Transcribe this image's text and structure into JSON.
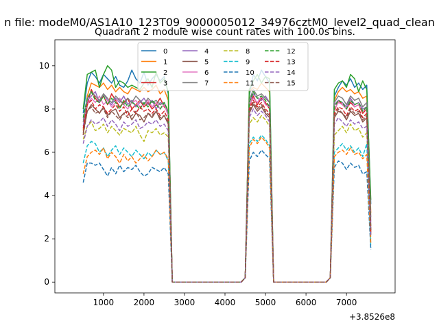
{
  "figure": {
    "suptitle": "n file: modeM0/AS1A10_123T09_9000005012_34976cztM0_level2_quad_clean"
  },
  "chart_data": {
    "type": "line",
    "title": "Quadrant 2 module wise count rates with 100.0s bins.",
    "xlabel": "",
    "ylabel": "",
    "x_offset_label": "+3.8526e8",
    "xlim": [
      -200,
      8200
    ],
    "ylim": [
      -0.5,
      11.2
    ],
    "xticks": [
      1000,
      2000,
      3000,
      4000,
      5000,
      6000,
      7000
    ],
    "yticks": [
      0,
      2,
      4,
      6,
      8,
      10
    ],
    "grid": false,
    "legend": {
      "placement": "upper-center",
      "columns": 4
    },
    "x": [
      500,
      600,
      700,
      800,
      900,
      1000,
      1100,
      1200,
      1300,
      1400,
      1500,
      1600,
      1700,
      1800,
      1900,
      2000,
      2100,
      2200,
      2300,
      2400,
      2500,
      2600,
      2700,
      2800,
      2900,
      3000,
      3100,
      3200,
      3300,
      3400,
      3500,
      3600,
      3700,
      3800,
      3900,
      4000,
      4100,
      4200,
      4300,
      4400,
      4500,
      4600,
      4700,
      4800,
      4900,
      5000,
      5100,
      5200,
      5300,
      5400,
      5500,
      5600,
      5700,
      5800,
      5900,
      6000,
      6100,
      6200,
      6300,
      6400,
      6500,
      6600,
      6700,
      6800,
      6900,
      7000,
      7100,
      7200,
      7300,
      7400,
      7500,
      7600
    ],
    "series": [
      {
        "name": "0",
        "color": "#1f77b4",
        "dash": "solid",
        "values": [
          7.8,
          9.2,
          9.7,
          9.5,
          9.2,
          9.6,
          9.4,
          9.2,
          9.5,
          9.1,
          9.0,
          9.3,
          9.8,
          9.4,
          9.2,
          9.7,
          9.1,
          9.4,
          9.6,
          9.3,
          9.5,
          8.7,
          0.0,
          0,
          0,
          0,
          0,
          0,
          0,
          0,
          0,
          0,
          0,
          0,
          0,
          0,
          0,
          0,
          0,
          0,
          0.2,
          8.6,
          9.6,
          9.3,
          9.8,
          9.5,
          9.2,
          0.0,
          0,
          0,
          0,
          0,
          0,
          0,
          0,
          0,
          0,
          0,
          0,
          0,
          0,
          0.2,
          8.6,
          9.0,
          9.3,
          9.1,
          9.4,
          9.0,
          9.2,
          8.9,
          9.1,
          3.6
        ]
      },
      {
        "name": "1",
        "color": "#ff7f0e",
        "dash": "solid",
        "values": [
          7.0,
          8.6,
          9.2,
          9.1,
          9.0,
          9.2,
          8.9,
          9.1,
          8.8,
          9.0,
          8.8,
          8.7,
          9.0,
          8.9,
          8.8,
          9.0,
          8.8,
          8.9,
          9.1,
          8.7,
          8.9,
          8.4,
          0.0,
          0,
          0,
          0,
          0,
          0,
          0,
          0,
          0,
          0,
          0,
          0,
          0,
          0,
          0,
          0,
          0,
          0,
          0.2,
          8.8,
          9.0,
          8.9,
          9.2,
          9.0,
          8.8,
          0.0,
          0,
          0,
          0,
          0,
          0,
          0,
          0,
          0,
          0,
          0,
          0,
          0,
          0,
          0.2,
          8.4,
          8.8,
          9.0,
          8.8,
          8.9,
          8.7,
          8.8,
          8.5,
          8.6,
          3.2
        ]
      },
      {
        "name": "2",
        "color": "#2ca02c",
        "dash": "solid",
        "values": [
          8.0,
          9.6,
          9.7,
          9.8,
          9.0,
          9.6,
          10.0,
          9.8,
          9.0,
          9.3,
          9.2,
          9.0,
          9.1,
          9.0,
          8.9,
          9.2,
          9.4,
          9.0,
          9.7,
          9.2,
          9.4,
          8.8,
          0.0,
          0,
          0,
          0,
          0,
          0,
          0,
          0,
          0,
          0,
          0,
          0,
          0,
          0,
          0,
          0,
          0,
          0,
          0.2,
          8.9,
          9.3,
          9.6,
          9.2,
          9.5,
          9.4,
          0.0,
          0,
          0,
          0,
          0,
          0,
          0,
          0,
          0,
          0,
          0,
          0,
          0,
          0,
          0.2,
          8.9,
          9.2,
          9.3,
          9.0,
          9.6,
          9.4,
          8.8,
          9.3,
          8.9,
          3.8
        ]
      },
      {
        "name": "3",
        "color": "#d62728",
        "dash": "solid",
        "values": [
          6.8,
          8.2,
          8.9,
          8.5,
          8.3,
          8.6,
          8.2,
          8.7,
          8.4,
          8.1,
          8.3,
          8.5,
          8.0,
          8.2,
          8.4,
          8.1,
          8.3,
          8.0,
          8.2,
          8.5,
          8.1,
          7.9,
          0.0,
          0,
          0,
          0,
          0,
          0,
          0,
          0,
          0,
          0,
          0,
          0,
          0,
          0,
          0,
          0,
          0,
          0,
          0.2,
          8.1,
          8.6,
          8.2,
          8.5,
          8.3,
          8.0,
          0.0,
          0,
          0,
          0,
          0,
          0,
          0,
          0,
          0,
          0,
          0,
          0,
          0,
          0,
          0.2,
          7.9,
          8.4,
          8.2,
          8.0,
          8.3,
          8.1,
          8.2,
          7.8,
          8.0,
          2.4
        ]
      },
      {
        "name": "4",
        "color": "#9467bd",
        "dash": "solid",
        "values": [
          7.2,
          8.4,
          8.6,
          8.8,
          8.3,
          8.7,
          8.4,
          8.2,
          8.5,
          8.3,
          8.6,
          8.2,
          8.4,
          8.1,
          8.3,
          8.5,
          8.2,
          8.4,
          8.0,
          8.3,
          8.2,
          7.8,
          0.0,
          0,
          0,
          0,
          0,
          0,
          0,
          0,
          0,
          0,
          0,
          0,
          0,
          0,
          0,
          0,
          0,
          0,
          0.2,
          8.3,
          8.7,
          8.5,
          8.4,
          8.6,
          8.3,
          0.0,
          0,
          0,
          0,
          0,
          0,
          0,
          0,
          0,
          0,
          0,
          0,
          0,
          0,
          0.2,
          8.2,
          8.4,
          8.3,
          8.1,
          8.5,
          8.2,
          8.3,
          8.0,
          8.1,
          2.8
        ]
      },
      {
        "name": "5",
        "color": "#8c564b",
        "dash": "solid",
        "values": [
          6.9,
          7.9,
          8.2,
          8.0,
          7.8,
          8.1,
          7.7,
          7.9,
          8.0,
          7.6,
          7.8,
          7.9,
          7.5,
          7.8,
          7.7,
          7.4,
          7.8,
          7.6,
          7.9,
          7.5,
          7.7,
          7.3,
          0.0,
          0,
          0,
          0,
          0,
          0,
          0,
          0,
          0,
          0,
          0,
          0,
          0,
          0,
          0,
          0,
          0,
          0,
          0.2,
          7.8,
          8.2,
          7.9,
          8.1,
          7.8,
          7.6,
          0.0,
          0,
          0,
          0,
          0,
          0,
          0,
          0,
          0,
          0,
          0,
          0,
          0,
          0,
          0.2,
          7.6,
          7.9,
          7.8,
          7.5,
          7.9,
          7.7,
          7.8,
          7.4,
          7.6,
          2.2
        ]
      },
      {
        "name": "6",
        "color": "#e377c2",
        "dash": "solid",
        "values": [
          7.5,
          8.2,
          8.5,
          8.3,
          8.6,
          8.2,
          8.4,
          8.1,
          8.3,
          8.5,
          8.2,
          8.0,
          8.3,
          8.4,
          8.1,
          8.2,
          8.4,
          8.1,
          8.3,
          8.0,
          8.2,
          7.7,
          0.0,
          0,
          0,
          0,
          0,
          0,
          0,
          0,
          0,
          0,
          0,
          0,
          0,
          0,
          0,
          0,
          0,
          0,
          0.2,
          8.2,
          8.5,
          8.3,
          8.6,
          8.2,
          8.1,
          0.0,
          0,
          0,
          0,
          0,
          0,
          0,
          0,
          0,
          0,
          0,
          0,
          0,
          0,
          0.2,
          8.0,
          8.3,
          8.2,
          8.0,
          8.4,
          8.1,
          8.2,
          7.9,
          8.0,
          2.6
        ]
      },
      {
        "name": "7",
        "color": "#7f7f7f",
        "dash": "solid",
        "values": [
          7.4,
          8.5,
          8.8,
          8.6,
          8.4,
          8.7,
          8.5,
          8.3,
          8.6,
          8.4,
          8.2,
          8.5,
          8.3,
          8.6,
          8.4,
          8.2,
          8.5,
          8.3,
          8.4,
          8.2,
          8.3,
          7.9,
          0.0,
          0,
          0,
          0,
          0,
          0,
          0,
          0,
          0,
          0,
          0,
          0,
          0,
          0,
          0,
          0,
          0,
          0,
          0.2,
          8.4,
          8.9,
          8.6,
          8.7,
          8.5,
          8.3,
          0.0,
          0,
          0,
          0,
          0,
          0,
          0,
          0,
          0,
          0,
          0,
          0,
          0,
          0,
          0.2,
          8.3,
          8.6,
          8.5,
          8.2,
          8.6,
          8.4,
          8.5,
          8.1,
          8.3,
          3.0
        ]
      },
      {
        "name": "8",
        "color": "#bcbd22",
        "dash": "dashed",
        "values": [
          6.6,
          7.2,
          7.4,
          7.0,
          7.1,
          7.3,
          6.9,
          7.2,
          7.0,
          6.8,
          7.1,
          7.0,
          6.9,
          7.2,
          6.8,
          6.5,
          7.0,
          6.9,
          7.1,
          6.8,
          6.9,
          6.7,
          0.0,
          0,
          0,
          0,
          0,
          0,
          0,
          0,
          0,
          0,
          0,
          0,
          0,
          0,
          0,
          0,
          0,
          0,
          0.2,
          7.3,
          7.6,
          7.4,
          7.7,
          7.5,
          7.2,
          0.0,
          0,
          0,
          0,
          0,
          0,
          0,
          0,
          0,
          0,
          0,
          0,
          0,
          0,
          0.2,
          6.8,
          7.0,
          7.2,
          6.9,
          7.3,
          7.0,
          7.1,
          6.7,
          6.9,
          2.0
        ]
      },
      {
        "name": "9",
        "color": "#17becf",
        "dash": "dashed",
        "values": [
          5.5,
          6.3,
          6.5,
          6.4,
          6.0,
          6.2,
          5.8,
          6.1,
          6.3,
          5.9,
          6.2,
          6.0,
          5.8,
          6.1,
          5.9,
          5.7,
          6.0,
          5.8,
          6.1,
          5.9,
          6.0,
          5.6,
          0.0,
          0,
          0,
          0,
          0,
          0,
          0,
          0,
          0,
          0,
          0,
          0,
          0,
          0,
          0,
          0,
          0,
          0,
          0.2,
          6.4,
          6.7,
          6.5,
          6.8,
          6.6,
          6.3,
          0.0,
          0,
          0,
          0,
          0,
          0,
          0,
          0,
          0,
          0,
          0,
          0,
          0,
          0,
          0.2,
          6.0,
          6.2,
          6.4,
          6.1,
          6.3,
          6.0,
          6.2,
          5.8,
          6.4,
          1.6
        ]
      },
      {
        "name": "10",
        "color": "#1f77b4",
        "dash": "dashed",
        "values": [
          4.6,
          5.5,
          5.5,
          5.4,
          5.5,
          5.2,
          4.9,
          5.3,
          5.0,
          5.4,
          5.1,
          5.3,
          5.2,
          5.4,
          5.1,
          4.9,
          5.0,
          5.3,
          5.2,
          5.1,
          5.3,
          5.0,
          0.0,
          0,
          0,
          0,
          0,
          0,
          0,
          0,
          0,
          0,
          0,
          0,
          0,
          0,
          0,
          0,
          0,
          0,
          0.2,
          5.6,
          6.0,
          5.8,
          6.1,
          5.9,
          5.7,
          0.0,
          0,
          0,
          0,
          0,
          0,
          0,
          0,
          0,
          0,
          0,
          0,
          0,
          0,
          0.2,
          5.3,
          5.6,
          5.5,
          5.2,
          5.5,
          5.3,
          5.4,
          5.0,
          5.1,
          1.5
        ]
      },
      {
        "name": "11",
        "color": "#ff7f0e",
        "dash": "dashed",
        "values": [
          5.0,
          5.8,
          6.0,
          6.1,
          5.9,
          6.2,
          5.7,
          6.0,
          5.8,
          5.5,
          5.9,
          5.6,
          5.8,
          5.5,
          5.7,
          5.9,
          5.6,
          5.8,
          6.1,
          5.9,
          6.0,
          5.7,
          0.0,
          0,
          0,
          0,
          0,
          0,
          0,
          0,
          0,
          0,
          0,
          0,
          0,
          0,
          0,
          0,
          0,
          0,
          0.2,
          6.2,
          6.6,
          6.4,
          6.7,
          6.5,
          6.2,
          0.0,
          0,
          0,
          0,
          0,
          0,
          0,
          0,
          0,
          0,
          0,
          0,
          0,
          0,
          0.2,
          5.8,
          6.0,
          6.1,
          5.9,
          6.2,
          5.9,
          6.0,
          5.7,
          5.9,
          1.8
        ]
      },
      {
        "name": "12",
        "color": "#2ca02c",
        "dash": "dashed",
        "values": [
          7.6,
          8.5,
          8.8,
          8.4,
          8.3,
          8.6,
          8.2,
          8.5,
          8.3,
          8.0,
          8.4,
          8.1,
          8.3,
          8.2,
          8.0,
          8.3,
          8.1,
          8.4,
          8.2,
          8.0,
          8.3,
          7.9,
          0.0,
          0,
          0,
          0,
          0,
          0,
          0,
          0,
          0,
          0,
          0,
          0,
          0,
          0,
          0,
          0,
          0,
          0,
          0.2,
          8.3,
          8.8,
          8.5,
          8.6,
          8.4,
          8.1,
          0.0,
          0,
          0,
          0,
          0,
          0,
          0,
          0,
          0,
          0,
          0,
          0,
          0,
          0,
          0.2,
          8.1,
          8.4,
          8.3,
          8.0,
          8.4,
          8.2,
          8.3,
          7.9,
          8.1,
          2.5
        ]
      },
      {
        "name": "13",
        "color": "#d62728",
        "dash": "dashed",
        "values": [
          7.1,
          8.2,
          8.4,
          8.0,
          8.2,
          8.1,
          7.8,
          8.0,
          8.2,
          7.9,
          8.1,
          7.7,
          8.0,
          7.8,
          8.1,
          7.9,
          8.0,
          7.8,
          8.0,
          7.7,
          7.9,
          7.5,
          0.0,
          0,
          0,
          0,
          0,
          0,
          0,
          0,
          0,
          0,
          0,
          0,
          0,
          0,
          0,
          0,
          0,
          0,
          0.2,
          8.0,
          8.4,
          8.1,
          8.3,
          8.0,
          7.8,
          0.0,
          0,
          0,
          0,
          0,
          0,
          0,
          0,
          0,
          0,
          0,
          0,
          0,
          0,
          0.2,
          7.8,
          8.1,
          8.0,
          7.7,
          8.1,
          7.9,
          8.0,
          7.6,
          7.8,
          2.3
        ]
      },
      {
        "name": "14",
        "color": "#9467bd",
        "dash": "dashed",
        "values": [
          6.4,
          7.2,
          7.5,
          7.3,
          7.4,
          7.6,
          7.2,
          7.5,
          7.3,
          7.0,
          7.4,
          7.2,
          7.3,
          7.5,
          7.1,
          7.2,
          7.4,
          7.3,
          7.5,
          7.2,
          7.3,
          7.0,
          0.0,
          0,
          0,
          0,
          0,
          0,
          0,
          0,
          0,
          0,
          0,
          0,
          0,
          0,
          0,
          0,
          0,
          0,
          0.2,
          7.6,
          8.0,
          7.7,
          7.9,
          7.7,
          7.4,
          0.0,
          0,
          0,
          0,
          0,
          0,
          0,
          0,
          0,
          0,
          0,
          0,
          0,
          0,
          0.2,
          7.3,
          7.6,
          7.4,
          7.2,
          7.5,
          7.3,
          7.4,
          7.1,
          7.2,
          2.1
        ]
      },
      {
        "name": "15",
        "color": "#8c564b",
        "dash": "dashed",
        "values": [
          6.8,
          7.9,
          8.1,
          7.8,
          7.9,
          8.0,
          7.6,
          7.9,
          7.7,
          7.5,
          7.8,
          7.6,
          7.7,
          7.9,
          7.5,
          7.6,
          7.8,
          7.7,
          7.9,
          7.6,
          7.7,
          7.4,
          0.0,
          0,
          0,
          0,
          0,
          0,
          0,
          0,
          0,
          0,
          0,
          0,
          0,
          0,
          0,
          0,
          0,
          0,
          0.2,
          7.9,
          8.3,
          8.0,
          8.2,
          7.9,
          7.7,
          0.0,
          0,
          0,
          0,
          0,
          0,
          0,
          0,
          0,
          0,
          0,
          0,
          0,
          0,
          0.2,
          7.7,
          8.0,
          7.8,
          7.6,
          8.0,
          7.8,
          7.9,
          7.5,
          7.7,
          2.4
        ]
      }
    ]
  }
}
